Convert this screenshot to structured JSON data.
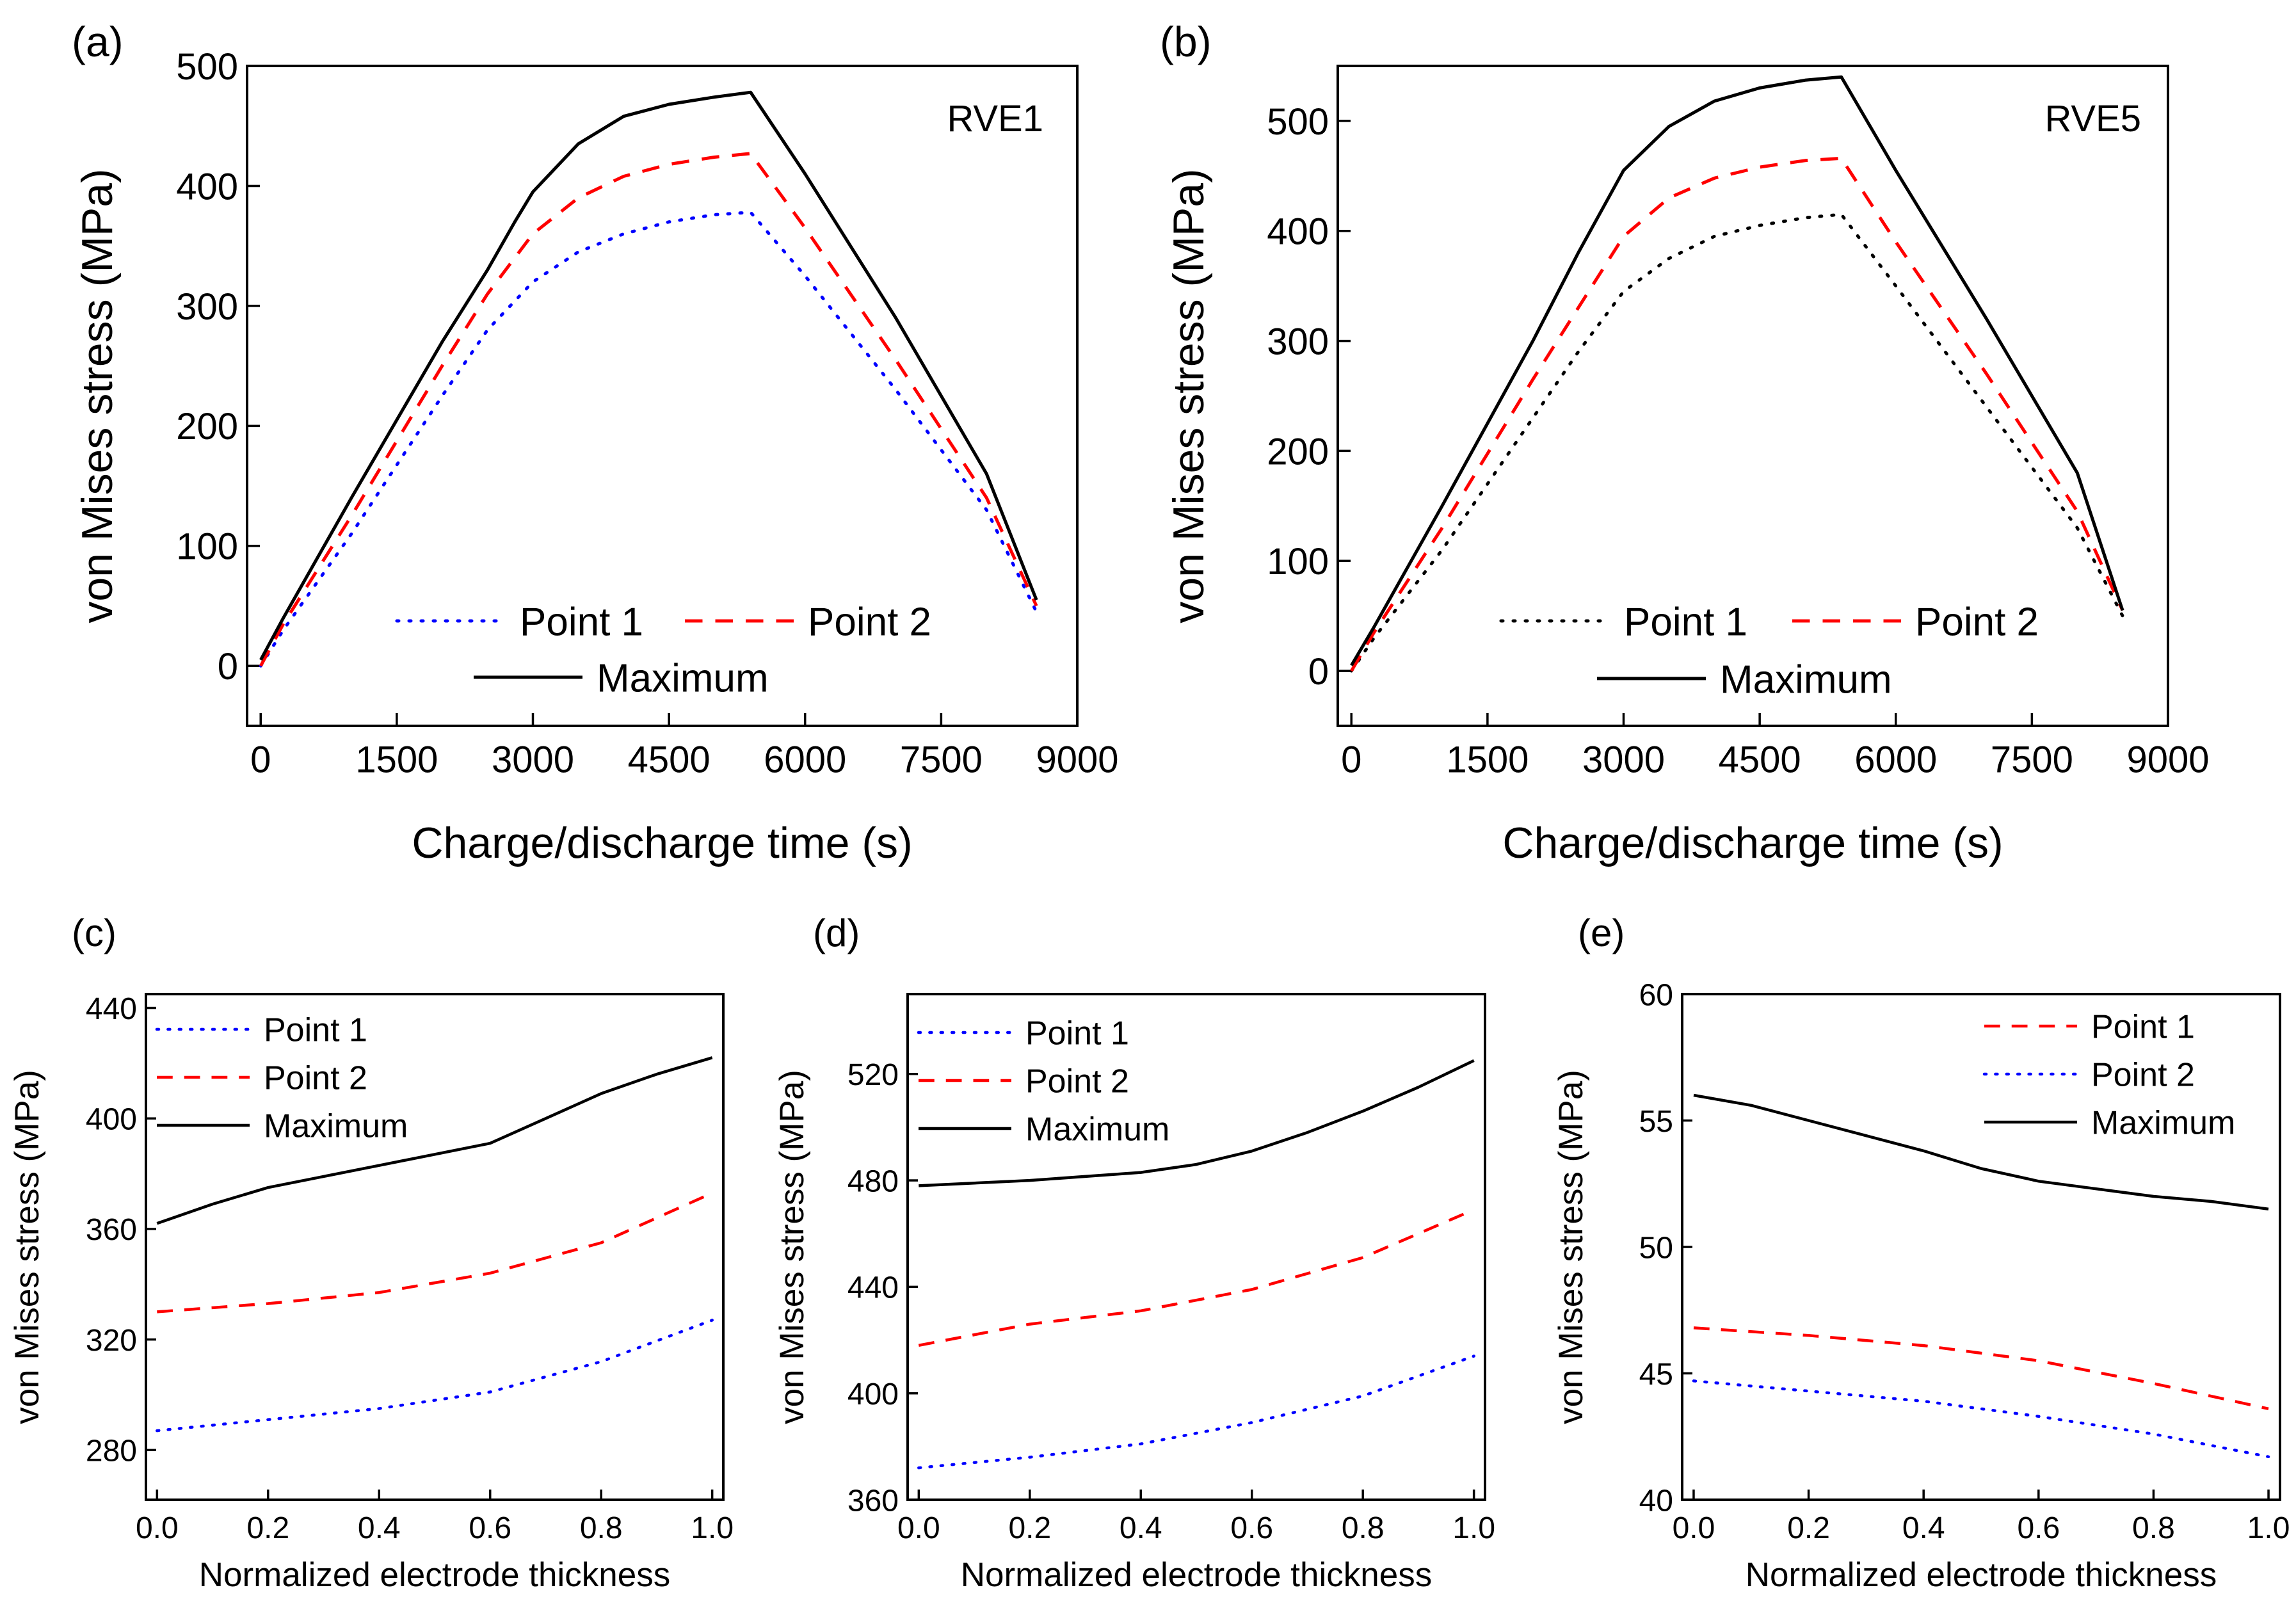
{
  "figure": {
    "description_free": true
  },
  "chart_data": [
    {
      "id": "a",
      "panel_label": "(a)",
      "type": "line",
      "annotation": "RVE1",
      "xlabel": "Charge/discharge time (s)",
      "ylabel": "von Mises stress (MPa)",
      "xlim": [
        -150,
        9000
      ],
      "ylim": [
        -50,
        500
      ],
      "xticks": [
        0,
        1500,
        3000,
        4500,
        6000,
        7500,
        9000
      ],
      "yticks": [
        0,
        100,
        200,
        300,
        400,
        500
      ],
      "legend_position": "bottom-center",
      "series": [
        {
          "name": "Point 1",
          "style": "dotted",
          "color": "#0000ff",
          "x": [
            0,
            250,
            1000,
            2000,
            2500,
            3000,
            3500,
            4000,
            4500,
            5000,
            5400,
            6000,
            7000,
            8000,
            8550
          ],
          "y": [
            0,
            30,
            110,
            225,
            280,
            320,
            345,
            360,
            370,
            376,
            378,
            325,
            230,
            130,
            45
          ]
        },
        {
          "name": "Point 2",
          "style": "dashed",
          "color": "#ff0000",
          "x": [
            0,
            250,
            1000,
            2000,
            2500,
            3000,
            3500,
            4000,
            4500,
            5000,
            5400,
            6000,
            7000,
            8000,
            8550
          ],
          "y": [
            0,
            35,
            125,
            250,
            310,
            360,
            390,
            408,
            418,
            424,
            427,
            365,
            255,
            140,
            50
          ]
        },
        {
          "name": "Maximum",
          "style": "solid",
          "color": "#000000",
          "x": [
            0,
            250,
            1000,
            2000,
            2500,
            2800,
            3000,
            3500,
            4000,
            4500,
            5000,
            5400,
            6000,
            7000,
            8000,
            8550
          ],
          "y": [
            5,
            40,
            140,
            270,
            330,
            370,
            395,
            435,
            458,
            468,
            474,
            478,
            410,
            290,
            160,
            55
          ]
        }
      ]
    },
    {
      "id": "b",
      "panel_label": "(b)",
      "type": "line",
      "annotation": "RVE5",
      "xlabel": "Charge/discharge time (s)",
      "ylabel": "von Mises stress (MPa)",
      "xlim": [
        -150,
        9000
      ],
      "ylim": [
        -50,
        550
      ],
      "xticks": [
        0,
        1500,
        3000,
        4500,
        6000,
        7500,
        9000
      ],
      "yticks": [
        0,
        100,
        200,
        300,
        400,
        500
      ],
      "legend_position": "bottom-center",
      "series": [
        {
          "name": "Point 1",
          "style": "dotted",
          "color": "#000000",
          "x": [
            0,
            250,
            1000,
            2000,
            2500,
            3000,
            3500,
            4000,
            4500,
            5000,
            5400,
            6000,
            7000,
            8000,
            8500
          ],
          "y": [
            0,
            30,
            110,
            230,
            290,
            345,
            375,
            395,
            405,
            412,
            415,
            350,
            240,
            130,
            50
          ]
        },
        {
          "name": "Point 2",
          "style": "dashed",
          "color": "#ff0000",
          "x": [
            0,
            250,
            1000,
            2000,
            2500,
            3000,
            3500,
            4000,
            4500,
            5000,
            5400,
            6000,
            7000,
            8000,
            8500
          ],
          "y": [
            0,
            35,
            130,
            265,
            330,
            395,
            430,
            448,
            458,
            464,
            466,
            390,
            270,
            145,
            55
          ]
        },
        {
          "name": "Maximum",
          "style": "solid",
          "color": "#000000",
          "x": [
            0,
            250,
            1000,
            2000,
            2500,
            3000,
            3500,
            4000,
            4500,
            5000,
            5400,
            6000,
            7000,
            8000,
            8500
          ],
          "y": [
            5,
            40,
            150,
            300,
            380,
            455,
            495,
            518,
            530,
            537,
            540,
            455,
            320,
            180,
            55
          ]
        }
      ]
    },
    {
      "id": "c",
      "panel_label": "(c)",
      "type": "line",
      "xlabel": "Normalized electrode thickness",
      "ylabel": "von Mises stress (MPa)",
      "xlim": [
        -0.02,
        1.02
      ],
      "ylim": [
        262,
        445
      ],
      "xticks": [
        0.0,
        0.2,
        0.4,
        0.6,
        0.8,
        1.0
      ],
      "yticks": [
        280,
        320,
        360,
        400,
        440
      ],
      "legend_position": "top-left",
      "series": [
        {
          "name": "Point 1",
          "style": "dotted",
          "color": "#0000ff",
          "x": [
            0,
            0.2,
            0.4,
            0.6,
            0.8,
            1.0
          ],
          "y": [
            287,
            291,
            295,
            301,
            312,
            327
          ]
        },
        {
          "name": "Point 2",
          "style": "dashed",
          "color": "#ff0000",
          "x": [
            0,
            0.2,
            0.4,
            0.6,
            0.8,
            1.0
          ],
          "y": [
            330,
            333,
            337,
            344,
            355,
            373
          ]
        },
        {
          "name": "Maximum",
          "style": "solid",
          "color": "#000000",
          "x": [
            0,
            0.1,
            0.2,
            0.4,
            0.6,
            0.7,
            0.8,
            0.9,
            1.0
          ],
          "y": [
            362,
            369,
            375,
            383,
            391,
            400,
            409,
            416,
            422
          ]
        }
      ]
    },
    {
      "id": "d",
      "panel_label": "(d)",
      "type": "line",
      "xlabel": "Normalized electrode thickness",
      "ylabel": "von Mises stress (MPa)",
      "xlim": [
        -0.02,
        1.02
      ],
      "ylim": [
        360,
        550
      ],
      "xticks": [
        0.0,
        0.2,
        0.4,
        0.6,
        0.8,
        1.0
      ],
      "yticks": [
        360,
        400,
        440,
        480,
        520
      ],
      "legend_position": "top-left",
      "series": [
        {
          "name": "Point 1",
          "style": "dotted",
          "color": "#0000ff",
          "x": [
            0,
            0.2,
            0.4,
            0.6,
            0.8,
            1.0
          ],
          "y": [
            372,
            376,
            381,
            389,
            399,
            414
          ]
        },
        {
          "name": "Point 2",
          "style": "dashed",
          "color": "#ff0000",
          "x": [
            0,
            0.2,
            0.4,
            0.6,
            0.8,
            1.0
          ],
          "y": [
            418,
            426,
            431,
            439,
            451,
            469
          ]
        },
        {
          "name": "Maximum",
          "style": "solid",
          "color": "#000000",
          "x": [
            0,
            0.2,
            0.4,
            0.5,
            0.6,
            0.7,
            0.8,
            0.9,
            1.0
          ],
          "y": [
            478,
            480,
            483,
            486,
            491,
            498,
            506,
            515,
            525
          ]
        }
      ]
    },
    {
      "id": "e",
      "panel_label": "(e)",
      "type": "line",
      "xlabel": "Normalized electrode thickness",
      "ylabel": "von Mises stress (MPa)",
      "xlim": [
        -0.02,
        1.02
      ],
      "ylim": [
        40,
        60
      ],
      "xticks": [
        0.0,
        0.2,
        0.4,
        0.6,
        0.8,
        1.0
      ],
      "yticks": [
        40,
        45,
        50,
        55,
        60
      ],
      "legend_position": "top-right",
      "series": [
        {
          "name": "Point 1",
          "style": "dashed",
          "color": "#ff0000",
          "x": [
            0,
            0.2,
            0.4,
            0.6,
            0.8,
            1.0
          ],
          "y": [
            46.8,
            46.5,
            46.1,
            45.5,
            44.6,
            43.6
          ]
        },
        {
          "name": "Point 2",
          "style": "dotted",
          "color": "#0000ff",
          "x": [
            0,
            0.2,
            0.4,
            0.6,
            0.8,
            1.0
          ],
          "y": [
            44.7,
            44.3,
            43.9,
            43.3,
            42.6,
            41.7
          ]
        },
        {
          "name": "Maximum",
          "style": "solid",
          "color": "#000000",
          "x": [
            0,
            0.1,
            0.2,
            0.3,
            0.4,
            0.5,
            0.6,
            0.7,
            0.8,
            0.9,
            1.0
          ],
          "y": [
            56.0,
            55.6,
            55.0,
            54.4,
            53.8,
            53.1,
            52.6,
            52.3,
            52.0,
            51.8,
            51.5
          ]
        }
      ]
    }
  ]
}
